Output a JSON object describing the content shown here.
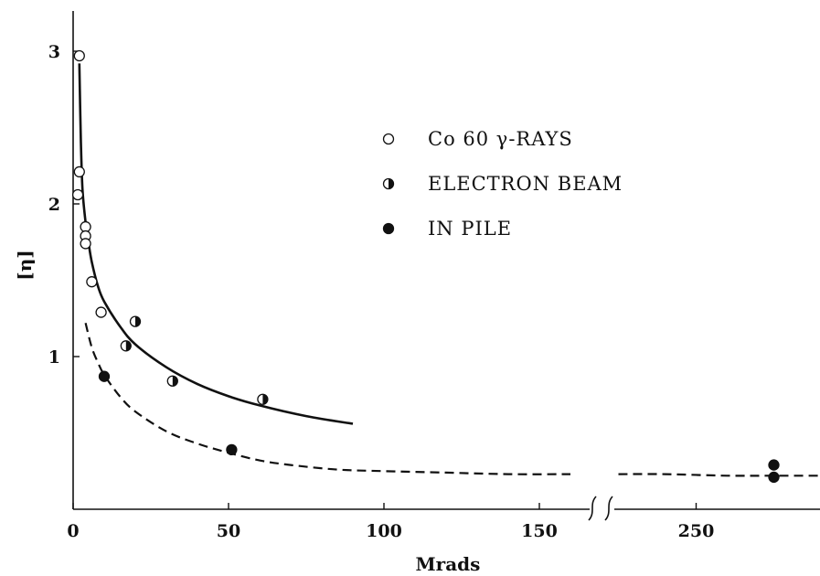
{
  "chart_data": {
    "type": "scatter",
    "xlabel": "Mrads",
    "ylabel": "[η]",
    "x_ticks": [
      {
        "value": 0,
        "label": "0"
      },
      {
        "value": 50,
        "label": "50"
      },
      {
        "value": 100,
        "label": "100"
      },
      {
        "value": 150,
        "label": "150"
      },
      {
        "value": 250,
        "label": "250"
      }
    ],
    "y_ticks": [
      {
        "value": 1,
        "label": "1"
      },
      {
        "value": 2,
        "label": "2"
      },
      {
        "value": 3,
        "label": "3"
      }
    ],
    "ylim": [
      0,
      3.2
    ],
    "x_break": {
      "from": 160,
      "to": 225
    },
    "grid": false,
    "legend_position": "top-right",
    "series": [
      {
        "name": "Co 60 γ-RAYS",
        "marker": "open",
        "points": [
          [
            2,
            2.97
          ],
          [
            2,
            2.21
          ],
          [
            1.5,
            2.06
          ],
          [
            4,
            1.85
          ],
          [
            4,
            1.79
          ],
          [
            4,
            1.74
          ],
          [
            6,
            1.49
          ],
          [
            9,
            1.29
          ]
        ]
      },
      {
        "name": "ELECTRON BEAM",
        "marker": "half",
        "points": [
          [
            20,
            1.23
          ],
          [
            17,
            1.07
          ],
          [
            32,
            0.84
          ],
          [
            61,
            0.72
          ]
        ]
      },
      {
        "name": "IN PILE",
        "marker": "filled",
        "points": [
          [
            10,
            0.87
          ],
          [
            51,
            0.39
          ],
          [
            275,
            0.29
          ],
          [
            275,
            0.21
          ]
        ]
      }
    ],
    "curves": [
      {
        "style": "solid",
        "points": [
          [
            2,
            2.92
          ],
          [
            2.5,
            2.4
          ],
          [
            3,
            2.1
          ],
          [
            4,
            1.88
          ],
          [
            5,
            1.74
          ],
          [
            6,
            1.62
          ],
          [
            8,
            1.46
          ],
          [
            10,
            1.36
          ],
          [
            15,
            1.2
          ],
          [
            20,
            1.08
          ],
          [
            30,
            0.93
          ],
          [
            40,
            0.82
          ],
          [
            50,
            0.74
          ],
          [
            60,
            0.68
          ],
          [
            75,
            0.61
          ],
          [
            90,
            0.56
          ]
        ]
      },
      {
        "style": "dashed",
        "points": [
          [
            4,
            1.22
          ],
          [
            6,
            1.06
          ],
          [
            8,
            0.96
          ],
          [
            10,
            0.88
          ],
          [
            15,
            0.74
          ],
          [
            20,
            0.64
          ],
          [
            30,
            0.51
          ],
          [
            40,
            0.43
          ],
          [
            50,
            0.37
          ],
          [
            60,
            0.32
          ],
          [
            70,
            0.29
          ],
          [
            85,
            0.26
          ],
          [
            100,
            0.25
          ],
          [
            120,
            0.24
          ],
          [
            140,
            0.23
          ],
          [
            160,
            0.23
          ]
        ]
      },
      {
        "style": "dashed",
        "points": [
          [
            225,
            0.23
          ],
          [
            240,
            0.23
          ],
          [
            260,
            0.22
          ],
          [
            275,
            0.22
          ],
          [
            290,
            0.22
          ]
        ]
      }
    ]
  }
}
